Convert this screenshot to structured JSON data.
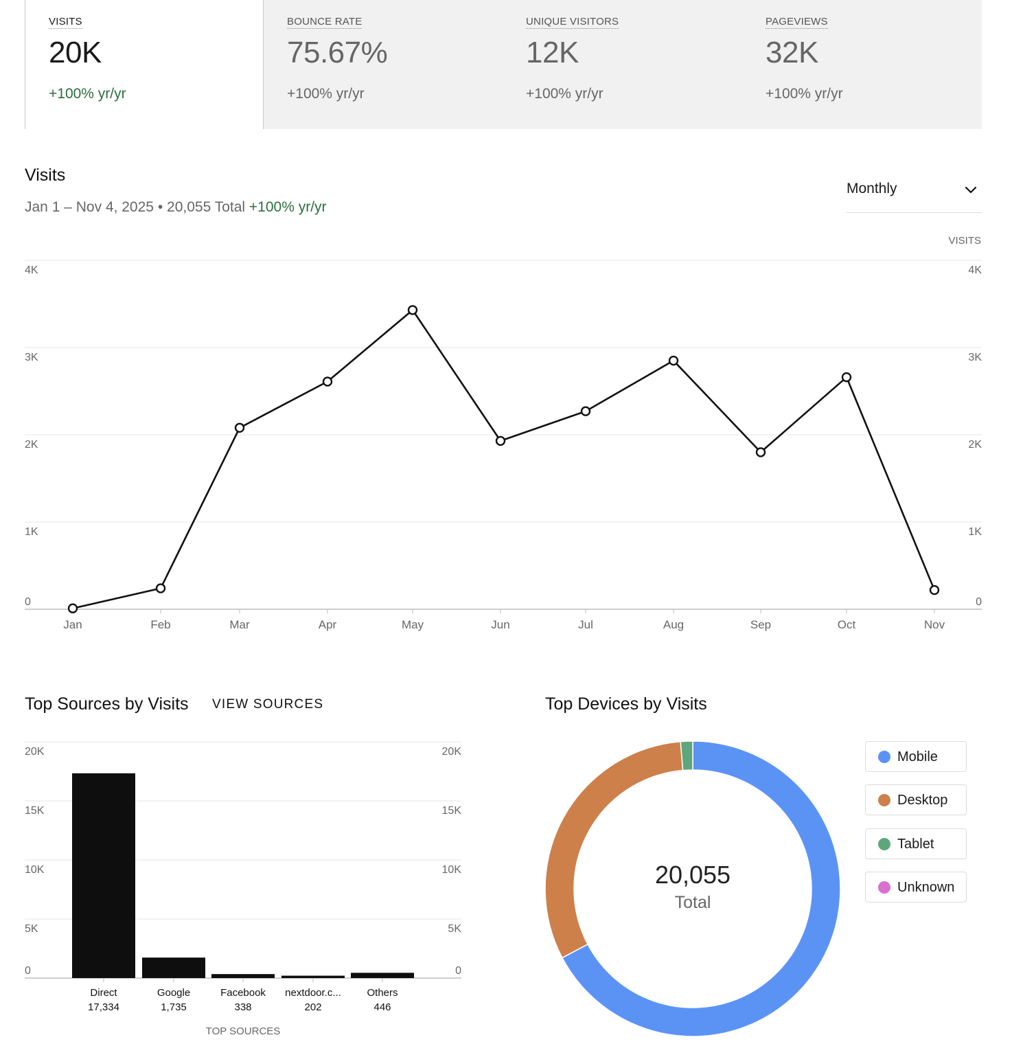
{
  "metrics": [
    {
      "label": "VISITS",
      "value": "20K",
      "change": "+100% yr/yr"
    },
    {
      "label": "BOUNCE RATE",
      "value": "75.67%",
      "change": "+100% yr/yr"
    },
    {
      "label": "UNIQUE VISITORS",
      "value": "12K",
      "change": "+100% yr/yr"
    },
    {
      "label": "PAGEVIEWS",
      "value": "32K",
      "change": "+100% yr/yr"
    }
  ],
  "visits": {
    "title": "Visits",
    "range": "Jan 1 – Nov 4, 2025",
    "separator": "•",
    "total": "20,055 Total",
    "change": "+100% yr/yr",
    "period": "Monthly",
    "axis_title": "VISITS"
  },
  "sources": {
    "title": "Top Sources by Visits",
    "link": "VIEW SOURCES",
    "axis_title": "TOP SOURCES"
  },
  "devices": {
    "title": "Top Devices by Visits",
    "center_value": "20,055",
    "center_label": "Total",
    "legend": [
      {
        "label": "Mobile",
        "color": "#5b93f5"
      },
      {
        "label": "Desktop",
        "color": "#cd804a"
      },
      {
        "label": "Tablet",
        "color": "#5ea67b"
      },
      {
        "label": "Unknown",
        "color": "#d96fd1"
      }
    ]
  },
  "colors": {
    "positive": "#2c6e3f",
    "line": "#111111",
    "bar": "#0e0e0e",
    "grid": "#e4e4e4"
  },
  "chart_data": [
    {
      "type": "line",
      "title": "Visits",
      "categories": [
        "Jan",
        "Feb",
        "Mar",
        "Apr",
        "May",
        "Jun",
        "Jul",
        "Aug",
        "Sep",
        "Oct",
        "Nov"
      ],
      "values": [
        10,
        240,
        2080,
        2610,
        3430,
        1930,
        2270,
        2850,
        1800,
        2660,
        220
      ],
      "y_ticks": [
        "0",
        "1K",
        "2K",
        "3K",
        "4K"
      ],
      "ylim": [
        0,
        4000
      ],
      "ylabel": "VISITS",
      "grid": true
    },
    {
      "type": "bar",
      "title": "Top Sources by Visits",
      "categories": [
        "Direct",
        "Google",
        "Facebook",
        "nextdoor.c...",
        "Others"
      ],
      "value_labels": [
        "17,334",
        "1,735",
        "338",
        "202",
        "446"
      ],
      "values": [
        17334,
        1735,
        338,
        202,
        446
      ],
      "y_ticks": [
        "0",
        "5K",
        "10K",
        "15K",
        "20K"
      ],
      "ylim": [
        0,
        20000
      ],
      "xlabel": "TOP SOURCES",
      "grid": true
    },
    {
      "type": "pie",
      "title": "Top Devices by Visits",
      "labels": [
        "Mobile",
        "Desktop",
        "Tablet",
        "Unknown"
      ],
      "values": [
        13490,
        6300,
        265,
        0
      ]
    }
  ]
}
